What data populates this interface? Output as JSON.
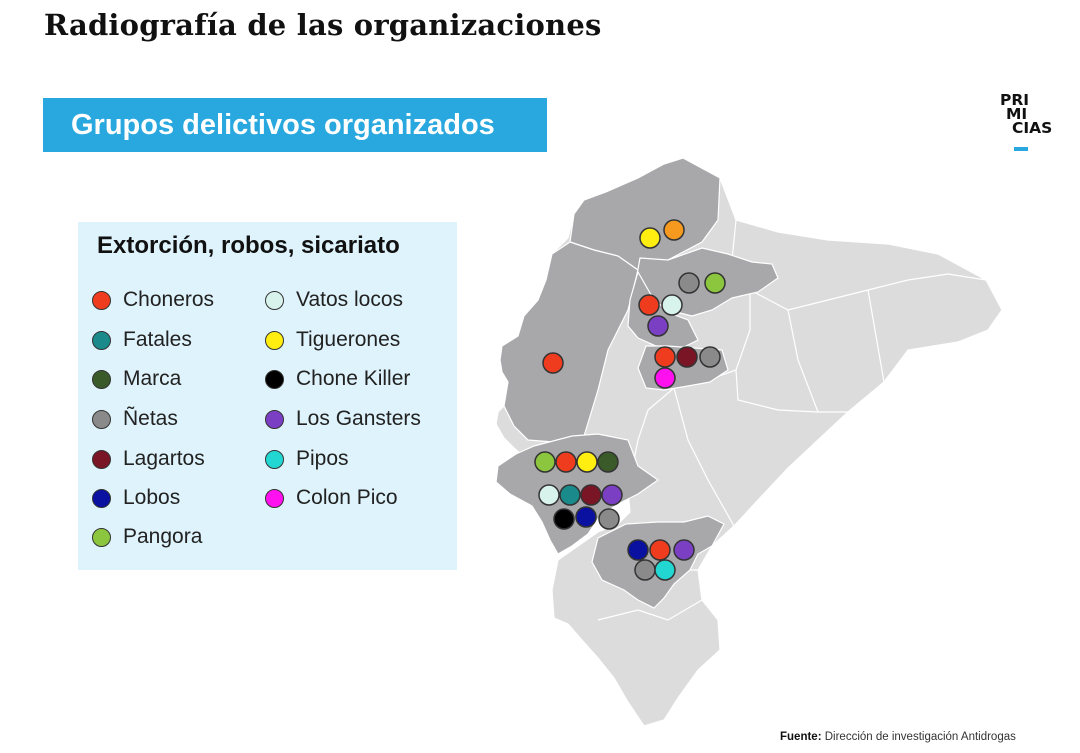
{
  "page": {
    "title": "Radiografía de las organizaciones",
    "banner": "Grupos delictivos organizados",
    "logo_lines": [
      "PRI",
      "MI",
      "CIAS"
    ],
    "source_label": "Fuente:",
    "source_text": "Dirección de investigación Antidrogas"
  },
  "legend": {
    "title": "Extorción, robos, sicariato",
    "items": [
      {
        "key": "choneros",
        "label": "Choneros",
        "color": "#f03c1e"
      },
      {
        "key": "fatales",
        "label": "Fatales",
        "color": "#1a8a8a"
      },
      {
        "key": "marca",
        "label": "Marca",
        "color": "#3b5a2a"
      },
      {
        "key": "netas",
        "label": "Ñetas",
        "color": "#8a8a8a"
      },
      {
        "key": "lagartos",
        "label": "Lagartos",
        "color": "#7a1526"
      },
      {
        "key": "lobos",
        "label": "Lobos",
        "color": "#0a10a0"
      },
      {
        "key": "pangora",
        "label": "Pangora",
        "color": "#8cc63e"
      },
      {
        "key": "vatos-locos",
        "label": "Vatos locos",
        "color": "#d8f2ec"
      },
      {
        "key": "tiguerones",
        "label": "Tiguerones",
        "color": "#ffee10"
      },
      {
        "key": "chone-killer",
        "label": "Chone Killer",
        "color": "#000000"
      },
      {
        "key": "los-gansters",
        "label": "Los Gansters",
        "color": "#7b3fc4"
      },
      {
        "key": "pipos",
        "label": "Pipos",
        "color": "#22d6d2"
      },
      {
        "key": "colon-pico",
        "label": "Colon Pico",
        "color": "#ff10ee"
      }
    ]
  },
  "map": {
    "highlighted_color": "#a8a8ab",
    "base_color": "#dcdcdc",
    "markers": [
      {
        "region": "esmeraldas",
        "groups": [
          "tiguerones",
          "orange"
        ]
      },
      {
        "region": "imbabura",
        "groups": [
          "netas",
          "pangora"
        ]
      },
      {
        "region": "pichincha",
        "groups": [
          "choneros",
          "vatos-locos",
          "los-gansters"
        ]
      },
      {
        "region": "manabi",
        "groups": [
          "choneros"
        ]
      },
      {
        "region": "cotopaxi-tungurahua",
        "groups": [
          "choneros",
          "lagartos",
          "netas",
          "colon-pico"
        ]
      },
      {
        "region": "guayas-north",
        "groups": [
          "pangora",
          "choneros",
          "tiguerones",
          "marca"
        ]
      },
      {
        "region": "guayas-center",
        "groups": [
          "vatos-locos",
          "fatales",
          "lagartos",
          "los-gansters"
        ]
      },
      {
        "region": "guayas-south",
        "groups": [
          "chone-killer",
          "lobos",
          "netas"
        ]
      },
      {
        "region": "azuay",
        "groups": [
          "lobos",
          "choneros",
          "los-gansters",
          "netas",
          "pipos"
        ]
      }
    ],
    "extra_colors": {
      "orange": "#f59a1e"
    }
  }
}
